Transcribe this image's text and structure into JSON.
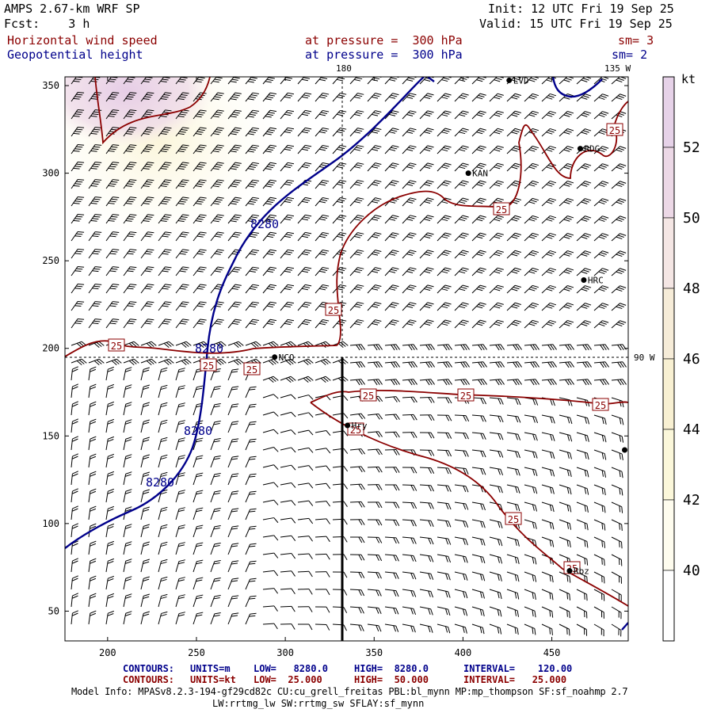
{
  "header": {
    "model": "AMPS 2.67-km WRF SP",
    "fcst": "Fcst:    3 h",
    "init": "Init: 12 UTC Fri 19 Sep 25",
    "valid": "Valid: 15 UTC Fri 19 Sep 25",
    "field1_name": "Horizontal wind speed",
    "field1_level": "at pressure =  300 hPa",
    "field1_sm": "sm= 3",
    "field2_name": "Geopotential height",
    "field2_level": "at pressure =  300 hPa",
    "field2_sm": "sm= 2"
  },
  "map": {
    "x_ticks": [
      "200",
      "250",
      "300",
      "350",
      "400",
      "450"
    ],
    "y_ticks": [
      "350",
      "300",
      "250",
      "200",
      "150",
      "100",
      "50"
    ],
    "x_range": [
      176,
      493
    ],
    "y_range": [
      33,
      355
    ],
    "meridian_labels": {
      "lon180": "180",
      "lon135w": "135 W",
      "lon90w": "90 W"
    },
    "stations": [
      {
        "name": "LVD",
        "x": 426,
        "y": 353
      },
      {
        "name": "RDG",
        "x": 466,
        "y": 314
      },
      {
        "name": "KAN",
        "x": 403,
        "y": 300
      },
      {
        "name": "HRC",
        "x": 468,
        "y": 239
      },
      {
        "name": "NCO",
        "x": 294,
        "y": 195
      },
      {
        "name": "Hry",
        "x": 335,
        "y": 156
      },
      {
        "name": "Rbz",
        "x": 460,
        "y": 73
      },
      {
        "name": "",
        "x": 491,
        "y": 142
      }
    ],
    "contour_height_label": "8280",
    "contour_wind_label": "25",
    "colors": {
      "height": "#00008b",
      "wind": "#8b0000",
      "barb": "#000000"
    }
  },
  "colorbar": {
    "unit": "kt",
    "labels": [
      "52",
      "50",
      "48",
      "46",
      "44",
      "42",
      "40"
    ],
    "colors": [
      "#e6d2e8",
      "#ecd8e6",
      "#f4e6e4",
      "#f6ecd8",
      "#f8f0d2",
      "#fbf7da",
      "#fefcee",
      "#ffffff"
    ]
  },
  "footer": {
    "line1_label": "CONTOURS:",
    "line1_units": "UNITS=m",
    "line1_low": "LOW=   8280.0",
    "line1_high": "HIGH=  8280.0",
    "line1_interval": "INTERVAL=    120.00",
    "line2_label": "CONTOURS:",
    "line2_units": "UNITS=kt",
    "line2_low": "LOW=  25.000",
    "line2_high": "HIGH=  50.000",
    "line2_interval": "INTERVAL=   25.000",
    "model_info1": "Model Info: MPASv8.2.3-194-gf29cd82c CU:cu_grell_freitas PBL:bl_mynn MP:mp_thompson SF:sf_noahmp 2.7",
    "model_info2": "LW:rrtmg_lw SW:rrtmg_sw SFLAY:sf_mynn"
  }
}
